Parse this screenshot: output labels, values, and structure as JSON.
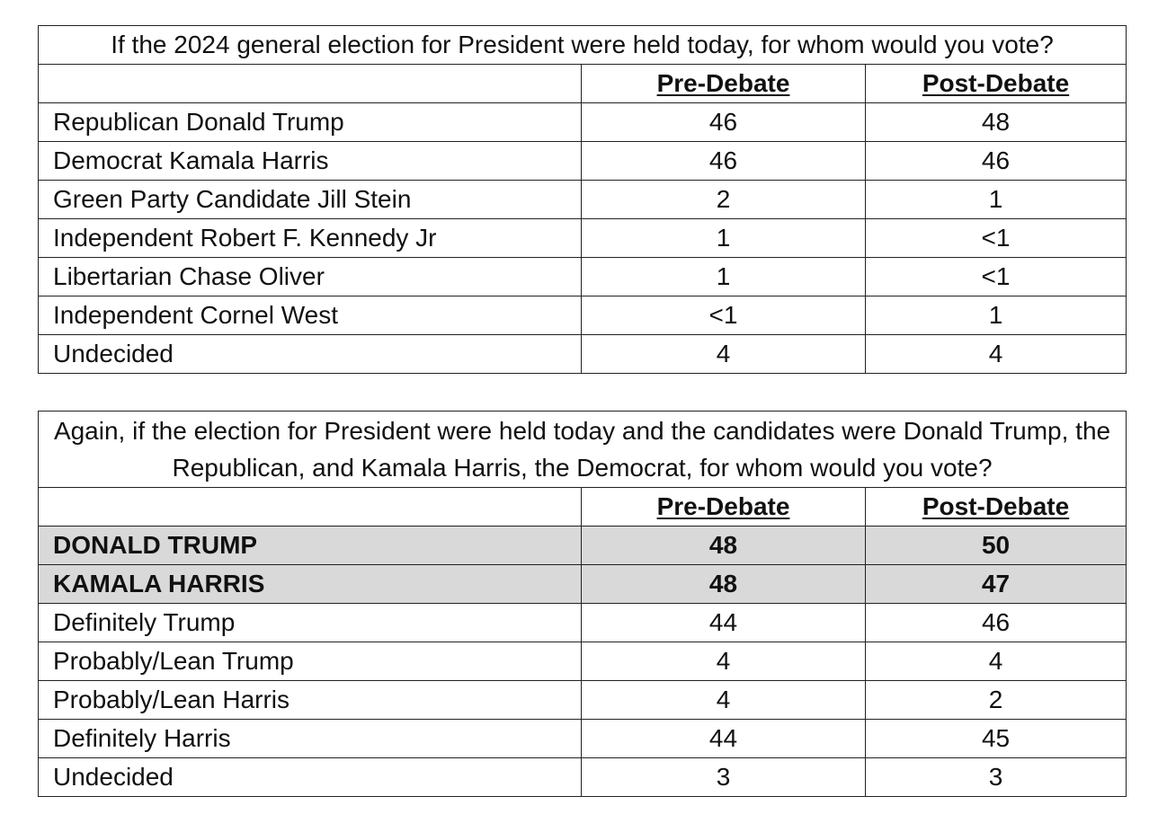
{
  "table1": {
    "question": "If the 2024 general election for President were held today, for whom would you vote?",
    "headers": [
      "",
      "Pre-Debate",
      "Post-Debate"
    ],
    "rows": [
      {
        "label": "Republican Donald Trump",
        "pre": "46",
        "post": "48"
      },
      {
        "label": "Democrat Kamala Harris",
        "pre": "46",
        "post": "46"
      },
      {
        "label": "Green Party Candidate Jill Stein",
        "pre": "2",
        "post": "1"
      },
      {
        "label": "Independent Robert F. Kennedy Jr",
        "pre": "1",
        "post": "<1"
      },
      {
        "label": "Libertarian Chase Oliver",
        "pre": "1",
        "post": "<1"
      },
      {
        "label": "Independent Cornel West",
        "pre": "<1",
        "post": "1"
      },
      {
        "label": "Undecided",
        "pre": "4",
        "post": "4"
      }
    ]
  },
  "table2": {
    "question": "Again, if the election for President were held today and the candidates were Donald Trump, the Republican, and Kamala Harris, the Democrat, for whom would you vote?",
    "headers": [
      "",
      "Pre-Debate",
      "Post-Debate"
    ],
    "rows": [
      {
        "label": "DONALD TRUMP",
        "pre": "48",
        "post": "50",
        "highlight": true
      },
      {
        "label": "KAMALA HARRIS",
        "pre": "48",
        "post": "47",
        "highlight": true
      },
      {
        "label": "Definitely Trump",
        "pre": "44",
        "post": "46"
      },
      {
        "label": "Probably/Lean Trump",
        "pre": "4",
        "post": "4"
      },
      {
        "label": "Probably/Lean Harris",
        "pre": "4",
        "post": "2"
      },
      {
        "label": "Definitely Harris",
        "pre": "44",
        "post": "45"
      },
      {
        "label": "Undecided",
        "pre": "3",
        "post": "3"
      }
    ]
  },
  "colors": {
    "highlight_row_bg": "#d9d9d9",
    "border": "#222222",
    "text": "#111111"
  }
}
